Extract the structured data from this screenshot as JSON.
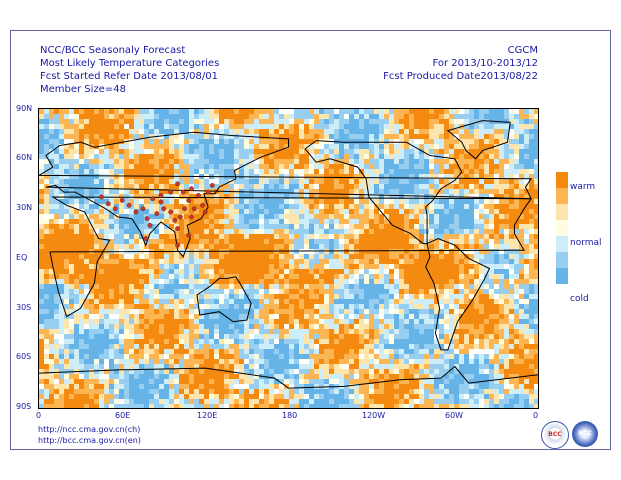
{
  "header": {
    "line1": "NCC/BCC Seasonaly Forecast",
    "line2": "Most Likely Temperature Categories",
    "line3": "Fcst Started Refer Date 2013/08/01",
    "line4": "Member Size=48",
    "model": "CGCM",
    "period": "For 2013/10-2013/12",
    "produced": "Fcst Produced Date2013/08/22"
  },
  "axes": {
    "lat_labels": [
      "90N",
      "60N",
      "30N",
      "EQ",
      "30S",
      "60S",
      "90S"
    ],
    "lon_labels": [
      "0",
      "60E",
      "120E",
      "180",
      "120W",
      "60W",
      "0"
    ]
  },
  "legend": {
    "items": [
      {
        "label": "warm",
        "color": "#f48a10"
      },
      {
        "label": "",
        "color": "#fbb553"
      },
      {
        "label": "",
        "color": "#fde6ae"
      },
      {
        "label": "normal",
        "color": "#fffde0"
      },
      {
        "label": "",
        "color": "#cdeef8"
      },
      {
        "label": "",
        "color": "#98cef0"
      },
      {
        "label": "cold",
        "color": "#66b3e8"
      }
    ]
  },
  "map": {
    "ocean_color": "#ffffff",
    "coast_color": "#000000",
    "dot_color": "#c0392b"
  },
  "footer": {
    "url1": "http://ncc.cma.gov.cn(ch)",
    "url2": "http://bcc.cma.gov.cn(en)",
    "logo_left": "BCC",
    "logo_right": "NCC"
  }
}
